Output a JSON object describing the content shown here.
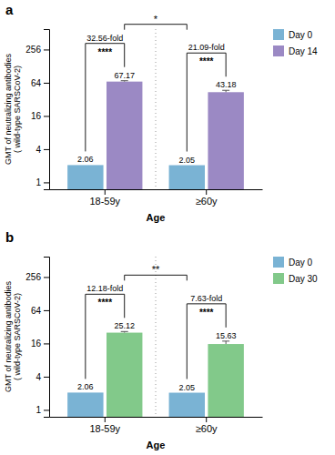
{
  "chart_data": [
    {
      "type": "bar",
      "title": "a",
      "categories": [
        "18-59y",
        "≥60y"
      ],
      "series": [
        {
          "name": "Day 0",
          "color": "#7ab3d4",
          "values": [
            2.06,
            2.05
          ]
        },
        {
          "name": "Day 14",
          "color": "#9b89c4",
          "values": [
            67.17,
            43.18
          ],
          "errors": [
            2.5,
            3.5
          ]
        }
      ],
      "xlabel": "Age",
      "ylabel": "GMT of neutralizing antibodies\n( wild-type SARSCoV-2)",
      "log": "y",
      "ylim": [
        0.75,
        600
      ],
      "yticks": [
        1,
        4,
        16,
        64,
        256
      ],
      "data_labels": true,
      "legend": "right",
      "grid": false,
      "annotations": {
        "fold_change": [
          "32.56-fold",
          "21.09-fold"
        ],
        "within_significance": [
          "****",
          "****"
        ],
        "between_significance": "*"
      }
    },
    {
      "type": "bar",
      "title": "b",
      "categories": [
        "18-59y",
        "≥60y"
      ],
      "series": [
        {
          "name": "Day 0",
          "color": "#7ab3d4",
          "values": [
            2.06,
            2.05
          ]
        },
        {
          "name": "Day 30",
          "color": "#82c98a",
          "values": [
            25.12,
            15.63
          ],
          "errors": [
            1.2,
            2.0
          ]
        }
      ],
      "xlabel": "Age",
      "ylabel": "GMT of neutralizing antibodies\n( wild-type SARSCoV-2)",
      "log": "y",
      "ylim": [
        0.75,
        600
      ],
      "yticks": [
        1,
        4,
        16,
        64,
        256
      ],
      "data_labels": true,
      "legend": "right",
      "grid": false,
      "annotations": {
        "fold_change": [
          "12.18-fold",
          "7.63-fold"
        ],
        "within_significance": [
          "****",
          "****"
        ],
        "between_significance": "**"
      }
    }
  ]
}
